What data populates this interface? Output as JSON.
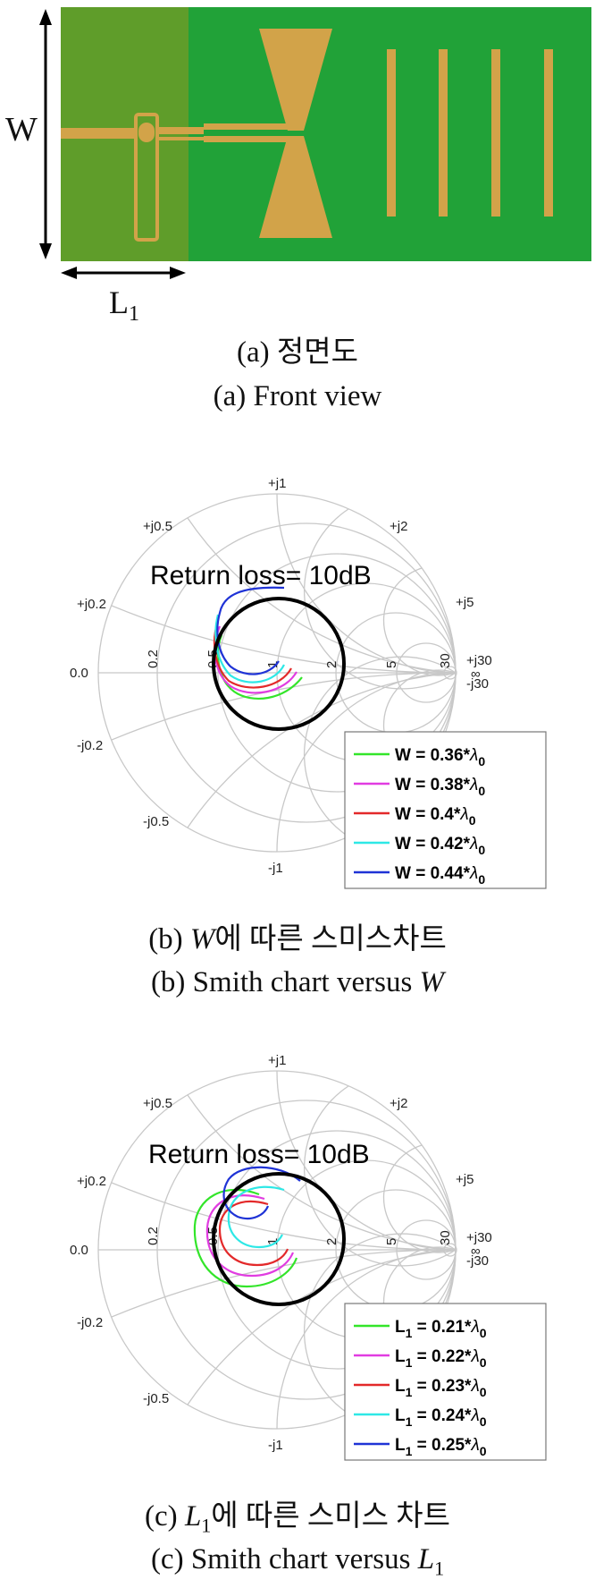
{
  "figure_a": {
    "dim_w": "W",
    "dim_l": "L",
    "dim_l_sub": "1",
    "caption_ko": "(a) 정면도",
    "caption_en": "(a) Front view",
    "colors": {
      "substrate_dark": "#5f9d2a",
      "substrate": "#21a238",
      "copper": "#d2a349"
    }
  },
  "figure_b": {
    "rl_title": "Return loss= 10dB",
    "caption_ko_prefix": "(b) ",
    "caption_ko_var": "W",
    "caption_ko_suffix": "에 따른 스미스차트",
    "caption_en_prefix": "(b) Smith chart versus ",
    "caption_en_var": "W",
    "legend": [
      {
        "prefix": "W = 0.36*",
        "color": "#33e52a"
      },
      {
        "prefix": "W = 0.38*",
        "color": "#e13ce1"
      },
      {
        "prefix": "W = 0.4*",
        "color": "#e3292a"
      },
      {
        "prefix": "W = 0.42*",
        "color": "#2ee8e6"
      },
      {
        "prefix": "W = 0.44*",
        "color": "#1f33d6"
      }
    ]
  },
  "figure_c": {
    "rl_title": "Return loss= 10dB",
    "caption_ko_prefix": "(c) ",
    "caption_ko_var": "L",
    "caption_ko_sub": "1",
    "caption_ko_suffix": "에 따른 스미스 차트",
    "caption_en_prefix": "(c) Smith chart versus ",
    "caption_en_var": "L",
    "caption_en_sub": "1",
    "legend": [
      {
        "prefix": "L",
        "sub": "1",
        "value": " = 0.21*",
        "color": "#33e52a"
      },
      {
        "prefix": "L",
        "sub": "1",
        "value": " = 0.22*",
        "color": "#e13ce1"
      },
      {
        "prefix": "L",
        "sub": "1",
        "value": " = 0.23*",
        "color": "#e3292a"
      },
      {
        "prefix": "L",
        "sub": "1",
        "value": " = 0.24*",
        "color": "#2ee8e6"
      },
      {
        "prefix": "L",
        "sub": "1",
        "value": " = 0.25*",
        "color": "#1f33d6"
      }
    ]
  },
  "smith_labels": {
    "top": "+j1",
    "bottom": "-j1",
    "pj05": "+j0.5",
    "mj05": "-j0.5",
    "pj02": "+j0.2",
    "mj02": "-j0.2",
    "pj2": "+j2",
    "pj5": "+j5",
    "pj30": "+j30",
    "mj30": "-j30",
    "zero": "0.0",
    "r02": "0.2",
    "r05": "0.5",
    "r1": "1",
    "r2": "2",
    "r5": "5",
    "r30": "30",
    "inf": "∞",
    "lambda_symbol": "λ",
    "lambda_sub": "0"
  },
  "chart_data": [
    {
      "type": "smith",
      "title": "Return loss= 10dB",
      "series": [
        {
          "name": "W = 0.36*λ0",
          "color": "#33e52a"
        },
        {
          "name": "W = 0.38*λ0",
          "color": "#e13ce1"
        },
        {
          "name": "W = 0.4*λ0",
          "color": "#e3292a"
        },
        {
          "name": "W = 0.42*λ0",
          "color": "#2ee8e6"
        },
        {
          "name": "W = 0.44*λ0",
          "color": "#1f33d6"
        }
      ],
      "legend": "bottom-right"
    },
    {
      "type": "smith",
      "title": "Return loss= 10dB",
      "series": [
        {
          "name": "L1 = 0.21*λ0",
          "color": "#33e52a"
        },
        {
          "name": "L1 = 0.22*λ0",
          "color": "#e13ce1"
        },
        {
          "name": "L1 = 0.23*λ0",
          "color": "#e3292a"
        },
        {
          "name": "L1 = 0.24*λ0",
          "color": "#2ee8e6"
        },
        {
          "name": "L1 = 0.25*λ0",
          "color": "#1f33d6"
        }
      ],
      "legend": "bottom-right"
    }
  ]
}
